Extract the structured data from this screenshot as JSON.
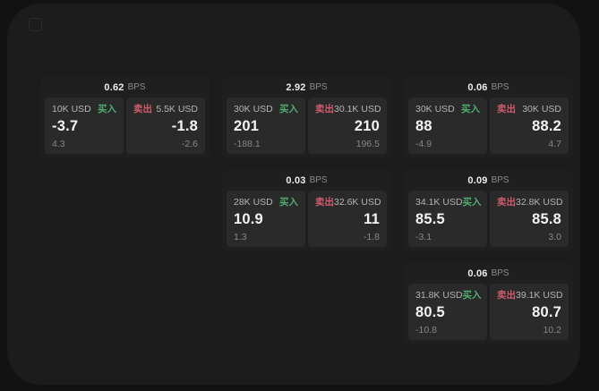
{
  "labels": {
    "bps": "BPS",
    "buy": "买入",
    "sell": "卖出"
  },
  "colors": {
    "buy": "#4fae6f",
    "sell": "#cd5d6b"
  },
  "cards": [
    {
      "spread": "0.62",
      "buy": {
        "size": "10K USD",
        "price": "-3.7",
        "change": "4.3"
      },
      "sell": {
        "size": "5.5K USD",
        "price": "-1.8",
        "change": "-2.6"
      }
    },
    {
      "spread": "2.92",
      "buy": {
        "size": "30K USD",
        "price": "201",
        "change": "-188.1"
      },
      "sell": {
        "size": "30.1K USD",
        "price": "210",
        "change": "196.5"
      }
    },
    {
      "spread": "0.06",
      "buy": {
        "size": "30K USD",
        "price": "88",
        "change": "-4.9"
      },
      "sell": {
        "size": "30K USD",
        "price": "88.2",
        "change": "4.7"
      }
    },
    {
      "spread": "0.03",
      "buy": {
        "size": "28K USD",
        "price": "10.9",
        "change": "1.3"
      },
      "sell": {
        "size": "32.6K USD",
        "price": "11",
        "change": "-1.8"
      }
    },
    {
      "spread": "0.09",
      "buy": {
        "size": "34.1K USD",
        "price": "85.5",
        "change": "-3.1"
      },
      "sell": {
        "size": "32.8K USD",
        "price": "85.8",
        "change": "3.0"
      }
    },
    {
      "spread": "0.06",
      "buy": {
        "size": "31.8K USD",
        "price": "80.5",
        "change": "-10.8"
      },
      "sell": {
        "size": "39.1K USD",
        "price": "80.7",
        "change": "10.2"
      }
    }
  ]
}
